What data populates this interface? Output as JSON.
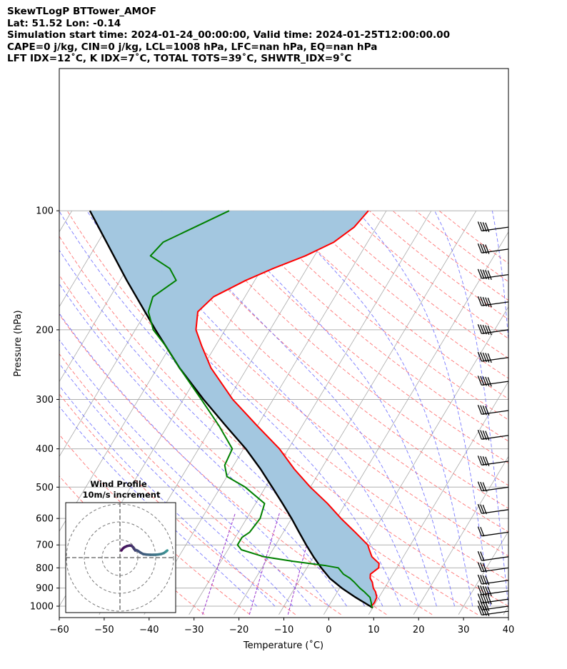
{
  "header": {
    "line1": "SkewTLogP BTTower_AMOF",
    "line2": "Lat: 51.52   Lon: -0.14",
    "line3": "Simulation start time: 2024-01-24_00:00:00, Valid time: 2024-01-25T12:00:00.00",
    "line4": "CAPE=0 j/kg, CIN=0 j/kg, LCL=1008 hPa, LFC=nan hPa, EQ=nan hPa",
    "line5": "LFT IDX=12˚C, K IDX=7˚C, TOTAL TOTS=39˚C, SHWTR_IDX=9˚C"
  },
  "chart_data": {
    "type": "line",
    "subtype": "skew-t log-p",
    "xlabel": "Temperature (˚C)",
    "ylabel": "Pressure (hPa)",
    "xlim": [
      -60,
      40
    ],
    "ylim": [
      1050,
      100
    ],
    "x_ticks": [
      "−60",
      "−50",
      "−40",
      "−30",
      "−20",
      "−10",
      "0",
      "10",
      "20",
      "30",
      "40"
    ],
    "x_tick_values": [
      -60,
      -50,
      -40,
      -30,
      -20,
      -10,
      0,
      10,
      20,
      30,
      40
    ],
    "y_ticks": [
      "1000",
      "900",
      "800",
      "700",
      "600",
      "500",
      "400",
      "300",
      "200",
      "100"
    ],
    "y_tick_values": [
      1000,
      900,
      800,
      700,
      600,
      500,
      400,
      300,
      200,
      100
    ],
    "grid": true,
    "colors": {
      "temperature": "#ff0000",
      "dewpoint": "#008000",
      "parcel": "#000000",
      "cape_fill": "#a3c7e0",
      "dry_adiabat": "#ff6666",
      "moist_adiabat": "#6a6aff",
      "mixing_ratio": "#9933cc",
      "isotherm": "#aaaaaa"
    },
    "series": [
      {
        "key": "temperature",
        "pressure": [
          1010,
          1000,
          980,
          950,
          920,
          900,
          870,
          850,
          830,
          800,
          780,
          750,
          720,
          700,
          650,
          600,
          550,
          500,
          450,
          400,
          350,
          300,
          250,
          220,
          200,
          180,
          165,
          150,
          140,
          130,
          120,
          110,
          100
        ],
        "values": [
          10,
          9.5,
          9.7,
          9.5,
          8.5,
          7.5,
          6.5,
          5.5,
          5.0,
          6.0,
          5.5,
          3.0,
          1.5,
          0.5,
          -4.0,
          -9.0,
          -14.0,
          -20.0,
          -26.0,
          -32.0,
          -40.0,
          -49.0,
          -58.0,
          -63.0,
          -66.5,
          -68.5,
          -67.0,
          -62.0,
          -57.5,
          -52.0,
          -47.5,
          -45.0,
          -44.0
        ]
      },
      {
        "key": "dewpoint",
        "pressure": [
          1010,
          1000,
          980,
          950,
          920,
          900,
          870,
          850,
          830,
          800,
          790,
          770,
          750,
          720,
          700,
          670,
          650,
          600,
          550,
          500,
          470,
          440,
          400,
          350,
          300,
          250,
          220,
          200,
          180,
          165,
          150,
          140,
          130,
          120,
          110,
          100
        ],
        "values": [
          10,
          9.5,
          9.0,
          8.0,
          6.0,
          4.5,
          2.5,
          1.0,
          -1.0,
          -3.0,
          -6.0,
          -14.0,
          -21.0,
          -27.0,
          -28.5,
          -28.5,
          -27.5,
          -27.0,
          -28.0,
          -34.5,
          -40.0,
          -42.0,
          -42.5,
          -48.5,
          -56.0,
          -65.0,
          -71.0,
          -76.0,
          -79.5,
          -80.5,
          -77.5,
          -80.5,
          -86.5,
          -85.5,
          -80.5,
          -75.0
        ]
      },
      {
        "key": "parcel",
        "pressure": [
          1010,
          1000,
          950,
          900,
          850,
          800,
          750,
          700,
          650,
          600,
          550,
          500,
          450,
          400,
          350,
          300,
          250,
          200,
          150,
          100
        ],
        "values": [
          10,
          9.2,
          4.8,
          0.5,
          -3.5,
          -6.8,
          -10.0,
          -13.2,
          -16.5,
          -20.0,
          -24.0,
          -28.5,
          -33.5,
          -39.5,
          -47.0,
          -55.5,
          -65.0,
          -75.5,
          -88.5,
          -106.0
        ]
      }
    ],
    "wind_barbs": [
      {
        "pressure": 1030,
        "speed_kt": 35
      },
      {
        "pressure": 1000,
        "speed_kt": 40
      },
      {
        "pressure": 960,
        "speed_kt": 45
      },
      {
        "pressure": 915,
        "speed_kt": 45
      },
      {
        "pressure": 860,
        "speed_kt": 40
      },
      {
        "pressure": 800,
        "speed_kt": 30
      },
      {
        "pressure": 750,
        "speed_kt": 20
      },
      {
        "pressure": 650,
        "speed_kt": 20
      },
      {
        "pressure": 570,
        "speed_kt": 25
      },
      {
        "pressure": 500,
        "speed_kt": 30
      },
      {
        "pressure": 430,
        "speed_kt": 35
      },
      {
        "pressure": 370,
        "speed_kt": 40
      },
      {
        "pressure": 320,
        "speed_kt": 40
      },
      {
        "pressure": 270,
        "speed_kt": 45
      },
      {
        "pressure": 235,
        "speed_kt": 45
      },
      {
        "pressure": 200,
        "speed_kt": 45
      },
      {
        "pressure": 170,
        "speed_kt": 45
      },
      {
        "pressure": 145,
        "speed_kt": 45
      },
      {
        "pressure": 125,
        "speed_kt": 40
      },
      {
        "pressure": 110,
        "speed_kt": 35
      }
    ],
    "wind_profile": {
      "title": "Wind Profile",
      "subtitle": "10m/s increment",
      "ring_increment_ms": 10,
      "u": [
        0.8,
        1.5,
        2.5,
        4.0,
        5.5,
        6.5,
        7.2,
        7.8,
        8.6,
        9.2,
        10.0,
        11.5,
        13.0,
        15.0,
        17.0,
        19.0,
        21.0,
        23.0,
        24.5,
        25.5,
        26.0,
        26.5
      ],
      "v": [
        4.0,
        5.0,
        5.8,
        6.5,
        6.8,
        6.6,
        6.0,
        5.0,
        4.0,
        4.2,
        3.8,
        2.8,
        2.0,
        1.7,
        1.6,
        1.6,
        1.7,
        2.0,
        2.5,
        3.2,
        3.6,
        4.0
      ]
    }
  }
}
